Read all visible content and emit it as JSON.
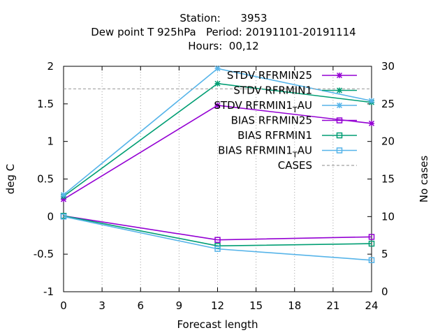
{
  "title": {
    "line1": "Station:      3953",
    "line2": "Dew point T 925hPa   Period: 20191101-20191114",
    "line3": "Hours:  00,12"
  },
  "chart_data": {
    "type": "line",
    "xlabel": "Forecast length",
    "ylabel": "deg C",
    "y2label": "No cases",
    "xlim": [
      0,
      24
    ],
    "ylim": [
      -1,
      2
    ],
    "y2lim": [
      0,
      30
    ],
    "xticks": [
      0,
      3,
      6,
      9,
      12,
      15,
      18,
      21,
      24
    ],
    "yticks": [
      -1,
      -0.5,
      0,
      0.5,
      1,
      1.5,
      2
    ],
    "y2ticks": [
      0,
      5,
      10,
      15,
      20,
      25,
      30
    ],
    "legend_position": "top-right",
    "grid": "dotted vertical lines at x ticks",
    "series": [
      {
        "name": "STDV RFRMIN25",
        "color": "#9400d3",
        "marker": "star",
        "x": [
          0,
          12,
          24
        ],
        "values": [
          0.23,
          1.48,
          1.24
        ]
      },
      {
        "name": "STDV RFRMIN1",
        "color": "#009e73",
        "marker": "star",
        "x": [
          0,
          12,
          24
        ],
        "values": [
          0.27,
          1.77,
          1.52
        ]
      },
      {
        "name": "STDV RFRMIN1_T AU",
        "label_main": "STDV RFRMIN1",
        "label_sub": "T",
        "label_tail": "AU",
        "color": "#56b4e9",
        "marker": "star",
        "x": [
          0,
          12,
          24
        ],
        "values": [
          0.29,
          1.97,
          1.54
        ]
      },
      {
        "name": "BIAS RFRMIN25",
        "color": "#9400d3",
        "marker": "square",
        "x": [
          0,
          12,
          24
        ],
        "values": [
          0.01,
          -0.31,
          -0.27
        ]
      },
      {
        "name": "BIAS RFRMIN1",
        "color": "#009e73",
        "marker": "square",
        "x": [
          0,
          12,
          24
        ],
        "values": [
          0.01,
          -0.39,
          -0.36
        ]
      },
      {
        "name": "BIAS RFRMIN1_T AU",
        "label_main": "BIAS RFRMIN1",
        "label_sub": "T",
        "label_tail": "AU",
        "color": "#56b4e9",
        "marker": "square",
        "x": [
          0,
          12,
          24
        ],
        "values": [
          0.0,
          -0.43,
          -0.58
        ]
      },
      {
        "name": "CASES",
        "color": "#a0a0a0",
        "dashed": true,
        "axis": "y2",
        "x": [
          0,
          12,
          24
        ],
        "values": [
          27,
          27,
          27
        ]
      }
    ]
  }
}
